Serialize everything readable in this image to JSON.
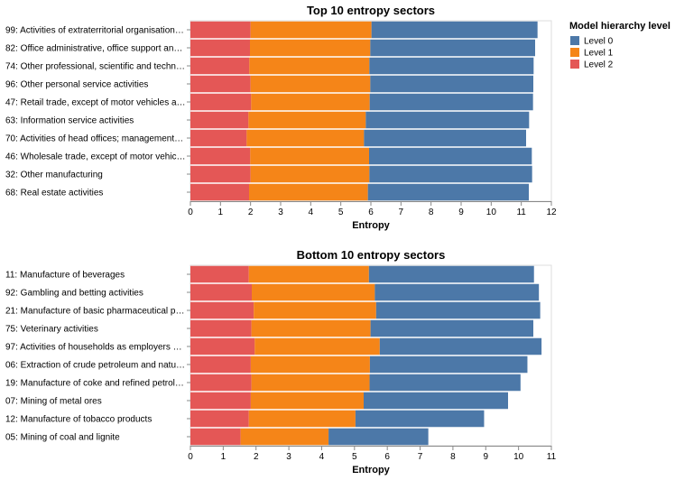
{
  "chart_data": [
    {
      "type": "bar",
      "orientation": "horizontal",
      "stacked": true,
      "title": "Top 10 entropy sectors",
      "xlabel": "Entropy",
      "ylabel": "",
      "xlim": [
        0,
        12
      ],
      "xticks": [
        "0",
        "1",
        "2",
        "3",
        "4",
        "5",
        "6",
        "7",
        "8",
        "9",
        "10",
        "11",
        "12"
      ],
      "categories": [
        "99: Activities of extraterritorial organisation…",
        "82: Office administrative, office support an…",
        "74: Other professional, scientific and techn…",
        "96: Other personal service activities",
        "47: Retail trade, except of motor vehicles a…",
        "63: Information service activities",
        "70: Activities of head offices; management…",
        "46: Wholesale trade, except of motor vehic…",
        "32: Other manufacturing",
        "68: Real estate activities"
      ],
      "series": [
        {
          "name": "Level 2",
          "values": [
            2.0,
            1.98,
            1.96,
            2.0,
            2.02,
            1.93,
            1.87,
            1.99,
            2.0,
            1.95
          ]
        },
        {
          "name": "Level 1",
          "values": [
            4.02,
            4.0,
            3.99,
            3.98,
            3.94,
            3.9,
            3.9,
            3.95,
            3.95,
            3.95
          ]
        },
        {
          "name": "Level 0",
          "values": [
            5.52,
            5.48,
            5.46,
            5.42,
            5.43,
            5.43,
            5.39,
            5.41,
            5.41,
            5.35
          ]
        }
      ],
      "grid": false
    },
    {
      "type": "bar",
      "orientation": "horizontal",
      "stacked": true,
      "title": "Bottom 10 entropy sectors",
      "xlabel": "Entropy",
      "ylabel": "",
      "xlim": [
        0,
        11
      ],
      "xticks": [
        "0",
        "1",
        "2",
        "3",
        "4",
        "5",
        "6",
        "7",
        "8",
        "9",
        "10",
        "11"
      ],
      "categories": [
        "11: Manufacture of beverages",
        "92: Gambling and betting activities",
        "21: Manufacture of basic pharmaceutical p…",
        "75: Veterinary activities",
        "97: Activities of households as employers …",
        "06: Extraction of crude petroleum and natu…",
        "19: Manufacture of coke and refined petrol…",
        "07: Mining of metal ores",
        "12: Manufacture of tobacco products",
        "05: Mining of coal and lignite"
      ],
      "series": [
        {
          "name": "Level 2",
          "values": [
            1.78,
            1.87,
            1.93,
            1.86,
            1.96,
            1.84,
            1.86,
            1.84,
            1.78,
            1.53
          ]
        },
        {
          "name": "Level 1",
          "values": [
            3.66,
            3.75,
            3.73,
            3.63,
            3.81,
            3.63,
            3.6,
            3.44,
            3.25,
            2.68
          ]
        },
        {
          "name": "Level 0",
          "values": [
            5.03,
            5.0,
            5.0,
            4.96,
            4.93,
            4.8,
            4.6,
            4.4,
            3.92,
            3.04
          ]
        }
      ],
      "grid": false
    }
  ],
  "legend": {
    "title": "Model hierarchy level",
    "placement": "top-right",
    "items": [
      {
        "label": "Level 0",
        "color": "#4c78a8"
      },
      {
        "label": "Level 1",
        "color": "#f58518"
      },
      {
        "label": "Level 2",
        "color": "#e45756"
      }
    ]
  },
  "colors": {
    "Level 0": "#4c78a8",
    "Level 1": "#f58518",
    "Level 2": "#e45756"
  }
}
